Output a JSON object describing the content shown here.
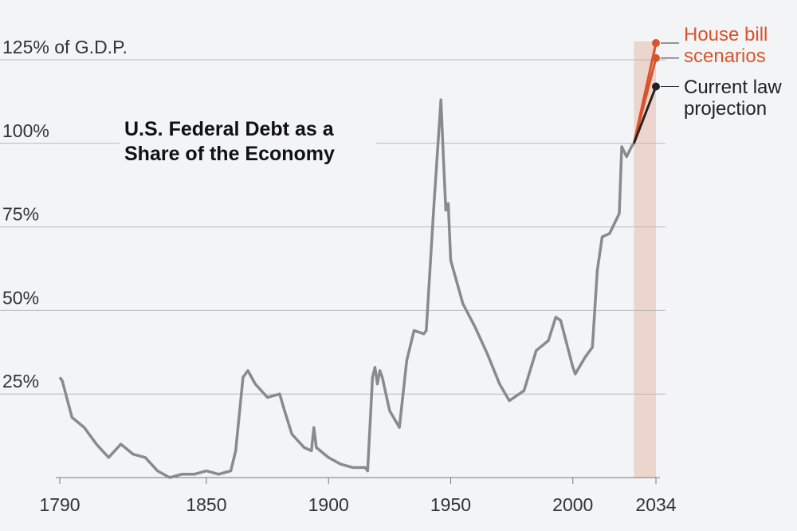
{
  "chart_data": {
    "type": "line",
    "title": "U.S. Federal Debt as a Share of the Economy",
    "xlim": [
      1790,
      2034
    ],
    "xticks": [
      1790,
      1850,
      1900,
      1950,
      2000,
      2034
    ],
    "ylim": [
      0,
      130
    ],
    "yticks": [
      {
        "value": 25,
        "label": "25%"
      },
      {
        "value": 50,
        "label": "50%"
      },
      {
        "value": 75,
        "label": "75%"
      },
      {
        "value": 100,
        "label": "100%"
      },
      {
        "value": 125,
        "label": "125% of G.D.P."
      }
    ],
    "grid": true,
    "shaded_span": [
      2025,
      2034
    ],
    "shade_color": "#ecd5cd",
    "series": [
      {
        "color": "#8a8a8a",
        "x": [
          1790,
          1791,
          1795,
          1800,
          1805,
          1810,
          1815,
          1820,
          1825,
          1830,
          1835,
          1840,
          1845,
          1850,
          1855,
          1860,
          1862,
          1865,
          1867,
          1870,
          1875,
          1880,
          1882,
          1885,
          1890,
          1893,
          1894,
          1895,
          1900,
          1905,
          1910,
          1915,
          1916,
          1918,
          1919,
          1920,
          1921,
          1922,
          1925,
          1929,
          1932,
          1935,
          1939,
          1940,
          1943,
          1946,
          1947,
          1948,
          1949,
          1950,
          1955,
          1960,
          1965,
          1970,
          1974,
          1980,
          1985,
          1990,
          1993,
          1995,
          2000,
          2001,
          2005,
          2008,
          2010,
          2012,
          2015,
          2019,
          2020,
          2022,
          2024,
          2025
        ],
        "values": [
          30,
          29,
          18,
          15,
          10,
          6,
          10,
          7,
          6,
          2,
          0,
          1,
          1,
          2,
          1,
          2,
          8,
          30,
          32,
          28,
          24,
          25,
          20,
          13,
          9,
          8,
          15,
          9,
          6,
          4,
          3,
          3,
          2,
          30,
          33,
          28,
          32,
          30,
          20,
          15,
          35,
          44,
          43,
          44,
          80,
          113,
          96,
          80,
          82,
          65,
          52,
          45,
          37,
          28,
          23,
          26,
          38,
          41,
          48,
          47,
          33,
          31,
          36,
          39,
          62,
          72,
          73,
          79,
          99,
          96,
          99,
          100
        ]
      },
      {
        "color": "#d9542b",
        "x": [
          2025,
          2034
        ],
        "values": [
          100,
          130
        ]
      },
      {
        "color": "#d9542b",
        "x": [
          2025,
          2034
        ],
        "values": [
          100,
          125.5
        ]
      },
      {
        "color": "#222222",
        "x": [
          2025,
          2034
        ],
        "values": [
          100,
          117
        ]
      }
    ],
    "annotations": [
      {
        "text": "House bill scenarios",
        "color": "#d9542b"
      },
      {
        "text": "Current law projection",
        "color": "#222222"
      }
    ]
  }
}
